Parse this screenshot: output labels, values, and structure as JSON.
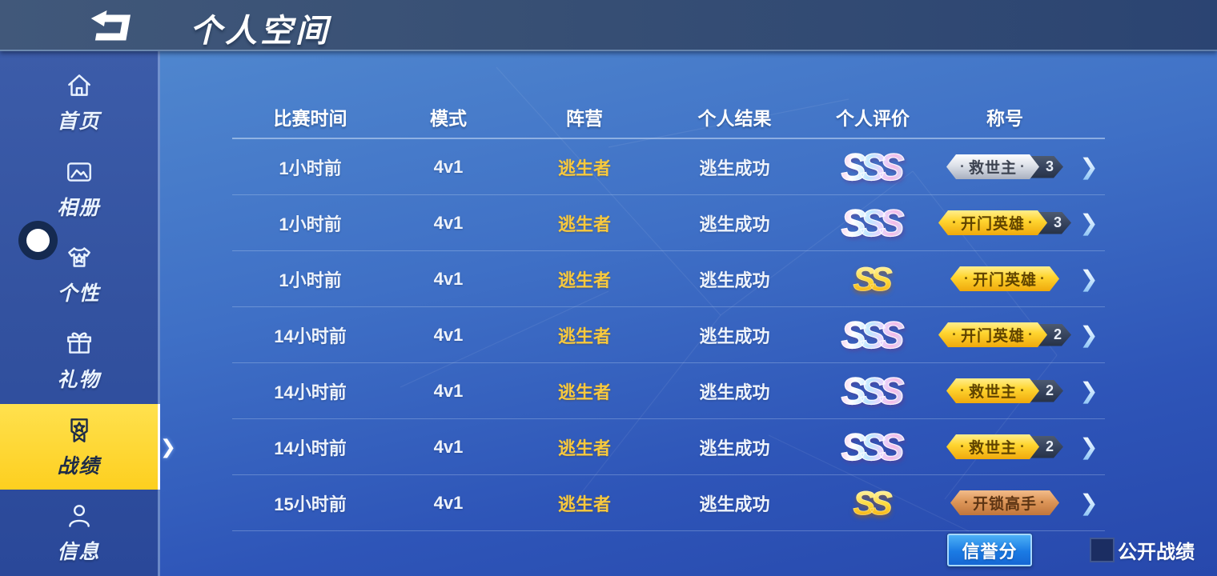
{
  "topbar": {
    "title": "个人空间",
    "back_icon": "back-arrow-icon"
  },
  "sidebar": {
    "items": [
      {
        "id": "home",
        "label": "首页",
        "icon": "home-icon",
        "active": false
      },
      {
        "id": "album",
        "label": "相册",
        "icon": "album-icon",
        "active": false
      },
      {
        "id": "personality",
        "label": "个性",
        "icon": "tshirt-icon",
        "active": false
      },
      {
        "id": "gifts",
        "label": "礼物",
        "icon": "gift-icon",
        "active": false
      },
      {
        "id": "records",
        "label": "战绩",
        "icon": "medal-icon",
        "active": true
      },
      {
        "id": "info",
        "label": "信息",
        "icon": "person-icon",
        "active": false
      }
    ]
  },
  "table": {
    "headers": [
      "比赛时间",
      "模式",
      "阵营",
      "个人结果",
      "个人评价",
      "称号"
    ],
    "rows": [
      {
        "time": "1小时前",
        "mode": "4v1",
        "faction": "逃生者",
        "result": "逃生成功",
        "rating": "SSS",
        "rating_style": "rainbow",
        "title": "救世主",
        "title_style": "silver",
        "title_count": "3"
      },
      {
        "time": "1小时前",
        "mode": "4v1",
        "faction": "逃生者",
        "result": "逃生成功",
        "rating": "SSS",
        "rating_style": "rainbow",
        "title": "开门英雄",
        "title_style": "gold",
        "title_count": "3"
      },
      {
        "time": "1小时前",
        "mode": "4v1",
        "faction": "逃生者",
        "result": "逃生成功",
        "rating": "SS",
        "rating_style": "gold",
        "title": "开门英雄",
        "title_style": "gold",
        "title_count": ""
      },
      {
        "time": "14小时前",
        "mode": "4v1",
        "faction": "逃生者",
        "result": "逃生成功",
        "rating": "SSS",
        "rating_style": "rainbow",
        "title": "开门英雄",
        "title_style": "gold",
        "title_count": "2"
      },
      {
        "time": "14小时前",
        "mode": "4v1",
        "faction": "逃生者",
        "result": "逃生成功",
        "rating": "SSS",
        "rating_style": "rainbow",
        "title": "救世主",
        "title_style": "gold",
        "title_count": "2"
      },
      {
        "time": "14小时前",
        "mode": "4v1",
        "faction": "逃生者",
        "result": "逃生成功",
        "rating": "SSS",
        "rating_style": "rainbow",
        "title": "救世主",
        "title_style": "gold",
        "title_count": "2"
      },
      {
        "time": "15小时前",
        "mode": "4v1",
        "faction": "逃生者",
        "result": "逃生成功",
        "rating": "SS",
        "rating_style": "gold",
        "title": "开锁高手",
        "title_style": "bronze",
        "title_count": ""
      }
    ]
  },
  "footer": {
    "credit_button": "信誉分",
    "public_checkbox_label": "公开战绩",
    "checkbox_checked": false
  },
  "icons": {
    "row_chevron": "❯",
    "sidebar_chevron": "❯",
    "badge_dot": "·"
  },
  "colors": {
    "active_yellow": "#fdcf1f",
    "faction_gold": "#f7c93e",
    "button_blue": "#1b7be4",
    "badge_silver": "#dde1e9",
    "badge_gold": "#ffd530",
    "badge_bronze": "#dd9659",
    "content_blue_top": "#4f86ce",
    "content_blue_bottom": "#2748ac"
  }
}
